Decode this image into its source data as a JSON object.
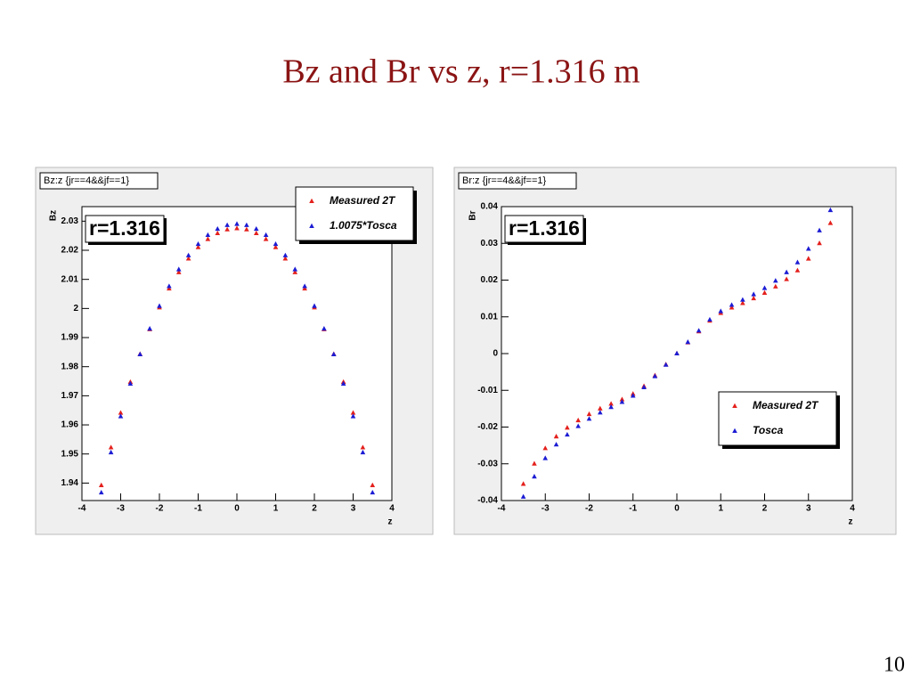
{
  "slide": {
    "title": "Bz and Br vs z,   r=1.316 m",
    "page_number": "10"
  },
  "chart_data": [
    {
      "type": "scatter",
      "stats_label": "Bz:z {jr==4&&jf==1}",
      "annotation": "r=1.316",
      "xlabel": "z",
      "ylabel": "Bz",
      "x": [
        -3.5,
        -3.25,
        -3,
        -2.75,
        -2.5,
        -2.25,
        -2,
        -1.75,
        -1.5,
        -1.25,
        -1,
        -0.75,
        -0.5,
        -0.25,
        0,
        0.25,
        0.5,
        0.75,
        1,
        1.25,
        1.5,
        1.75,
        2,
        2.25,
        2.5,
        2.75,
        3,
        3.25,
        3.5
      ],
      "series": [
        {
          "name": "Measured 2T",
          "color": "#e4201c",
          "values": [
            1.9392,
            1.9522,
            1.9641,
            1.9747,
            1.9843,
            1.9928,
            2.0003,
            2.0068,
            2.0124,
            2.0171,
            2.021,
            2.0238,
            2.0258,
            2.0271,
            2.0275,
            2.0271,
            2.0258,
            2.0238,
            2.021,
            2.0171,
            2.0124,
            2.0068,
            2.0003,
            1.9928,
            1.9843,
            1.9747,
            1.9641,
            1.9522,
            1.9392
          ]
        },
        {
          "name": "1.0075*Tosca",
          "color": "#1c1cd4",
          "values": [
            1.9367,
            1.9505,
            1.9629,
            1.9741,
            1.9842,
            1.993,
            2.0008,
            2.0076,
            2.0134,
            2.0182,
            2.0221,
            2.0252,
            2.0273,
            2.0286,
            2.029,
            2.0286,
            2.0273,
            2.0252,
            2.0221,
            2.0182,
            2.0134,
            2.0076,
            2.0008,
            1.993,
            1.9842,
            1.9741,
            1.9629,
            1.9505,
            1.9367
          ]
        }
      ],
      "xlim": [
        -4,
        4
      ],
      "xticks": [
        -4,
        -3,
        -2,
        -1,
        0,
        1,
        2,
        3,
        4
      ],
      "ylim": [
        1.934,
        2.035
      ],
      "yticks": [
        1.94,
        1.95,
        1.96,
        1.97,
        1.98,
        1.99,
        2,
        2.01,
        2.02,
        2.03
      ],
      "legend": "upper right"
    },
    {
      "type": "scatter",
      "stats_label": "Br:z {jr==4&&jf==1}",
      "annotation": "r=1.316",
      "xlabel": "z",
      "ylabel": "Br",
      "x": [
        -3.5,
        -3.25,
        -3,
        -2.75,
        -2.5,
        -2.25,
        -2,
        -1.75,
        -1.5,
        -1.25,
        -1,
        -0.75,
        -0.5,
        -0.25,
        0,
        0.25,
        0.5,
        0.75,
        1,
        1.25,
        1.5,
        1.75,
        2,
        2.25,
        2.5,
        2.75,
        3,
        3.25,
        3.5
      ],
      "series": [
        {
          "name": "Measured 2T",
          "color": "#e4201c",
          "values": [
            -0.0355,
            -0.03,
            -0.0258,
            -0.0226,
            -0.0202,
            -0.0182,
            -0.0165,
            -0.015,
            -0.0137,
            -0.0125,
            -0.011,
            -0.0089,
            -0.006,
            -0.003,
            0,
            0.003,
            0.006,
            0.0089,
            0.011,
            0.0125,
            0.0137,
            0.015,
            0.0165,
            0.0182,
            0.0202,
            0.0226,
            0.0258,
            0.03,
            0.0355
          ]
        },
        {
          "name": "Tosca",
          "color": "#1c1cd4",
          "values": [
            -0.039,
            -0.0335,
            -0.0285,
            -0.0248,
            -0.0221,
            -0.0198,
            -0.0178,
            -0.0161,
            -0.0146,
            -0.0132,
            -0.0115,
            -0.0092,
            -0.0062,
            -0.0031,
            0,
            0.0031,
            0.0062,
            0.0092,
            0.0115,
            0.0132,
            0.0146,
            0.0161,
            0.0178,
            0.0198,
            0.0221,
            0.0248,
            0.0285,
            0.0335,
            0.039
          ]
        }
      ],
      "xlim": [
        -4,
        4
      ],
      "xticks": [
        -4,
        -3,
        -2,
        -1,
        0,
        1,
        2,
        3,
        4
      ],
      "ylim": [
        -0.04,
        0.04
      ],
      "yticks": [
        -0.04,
        -0.03,
        -0.02,
        -0.01,
        0,
        0.01,
        0.02,
        0.03,
        0.04
      ],
      "legend": "lower right"
    }
  ]
}
